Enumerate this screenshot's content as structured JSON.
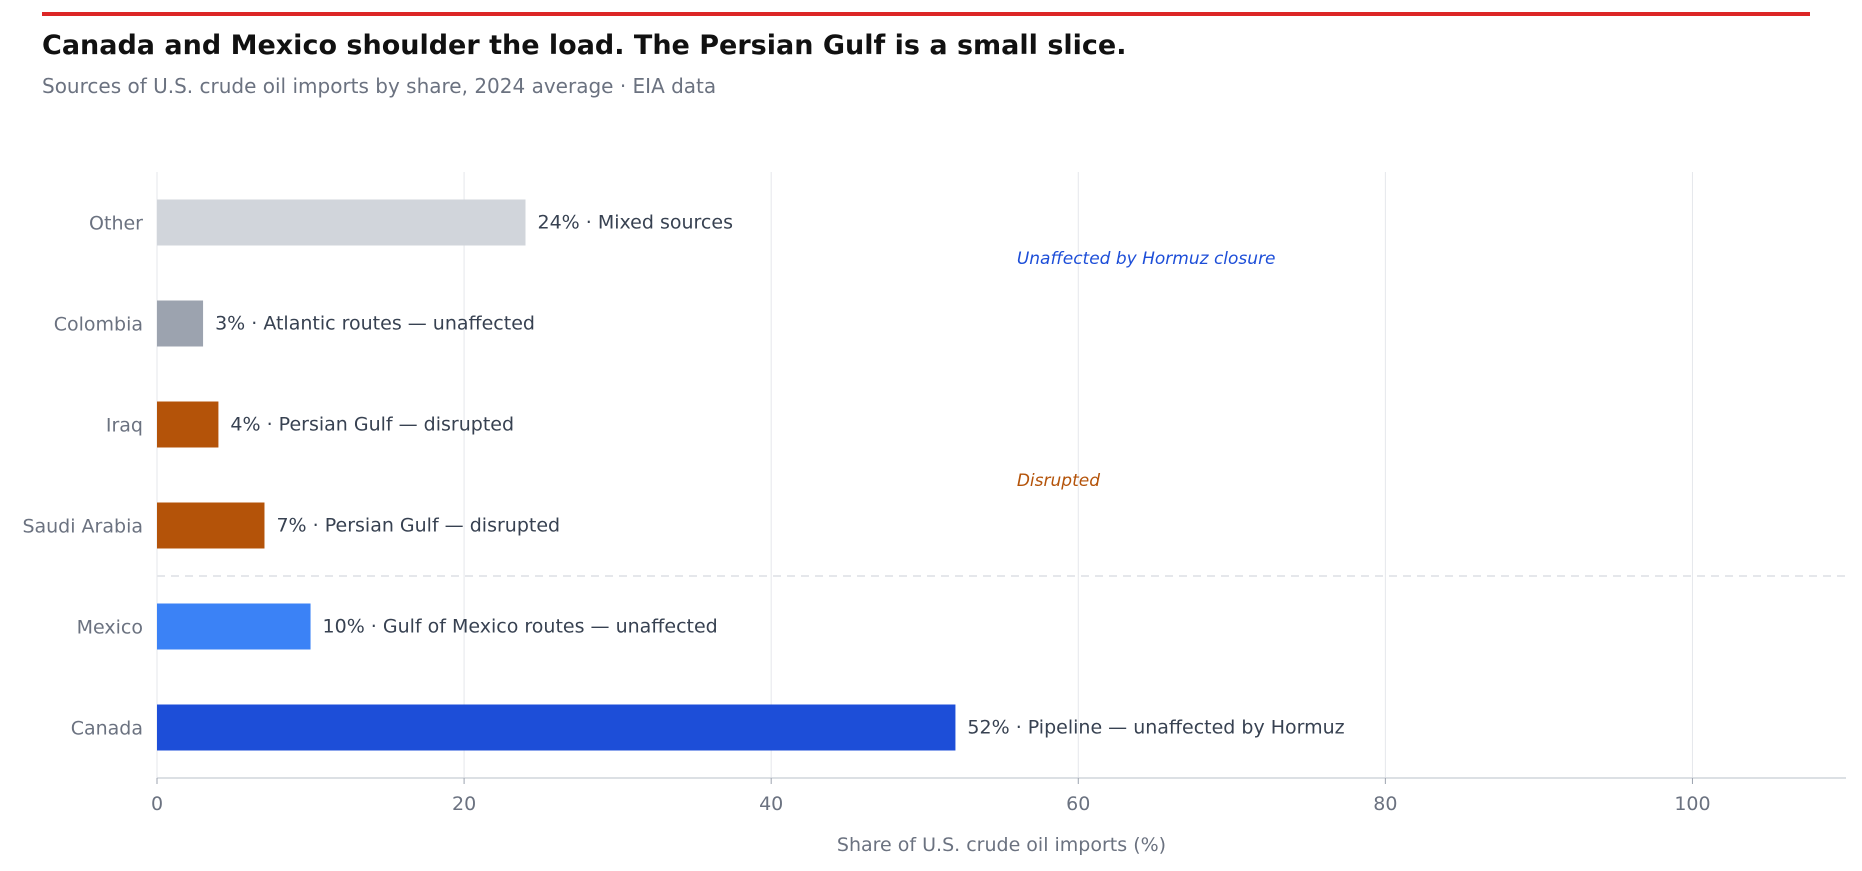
{
  "header": {
    "title": "Canada and Mexico shoulder the load. The Persian Gulf is a small slice.",
    "subtitle": "Sources of U.S. crude oil imports by share, 2024 average  ·  EIA data",
    "accent_color": "#dc2626"
  },
  "chart_data": {
    "type": "bar",
    "orientation": "horizontal",
    "title": "Canada and Mexico shoulder the load. The Persian Gulf is a small slice.",
    "subtitle": "Sources of U.S. crude oil imports by share, 2024 average  ·  EIA data",
    "xlabel": "Share of U.S. crude oil imports (%)",
    "ylabel": "",
    "xlim": [
      0,
      110
    ],
    "xticks": [
      0,
      20,
      40,
      60,
      80,
      100
    ],
    "grid": true,
    "categories": [
      "Canada",
      "Mexico",
      "Saudi Arabia",
      "Iraq",
      "Colombia",
      "Other"
    ],
    "values": [
      52,
      10,
      7,
      4,
      3,
      24
    ],
    "bar_labels": [
      "52%  ·  Pipeline — unaffected by Hormuz",
      "10%  ·  Gulf of Mexico routes — unaffected",
      "7%  ·  Persian Gulf — disrupted",
      "4%  ·  Persian Gulf — disrupted",
      "3%  ·  Atlantic routes — unaffected",
      "24%  ·  Mixed sources"
    ],
    "colors": [
      "#1d4ed8",
      "#3b82f6",
      "#b45309",
      "#b45309",
      "#9ca3af",
      "#d1d5db"
    ],
    "annotations": [
      {
        "text": "Unaffected by Hormuz closure",
        "color": "#1d4ed8",
        "x": 56,
        "y": 4.65
      },
      {
        "text": "Disrupted",
        "color": "#b45309",
        "x": 56,
        "y": 2.45
      }
    ],
    "separator_between": [
      "Mexico",
      "Saudi Arabia"
    ]
  }
}
